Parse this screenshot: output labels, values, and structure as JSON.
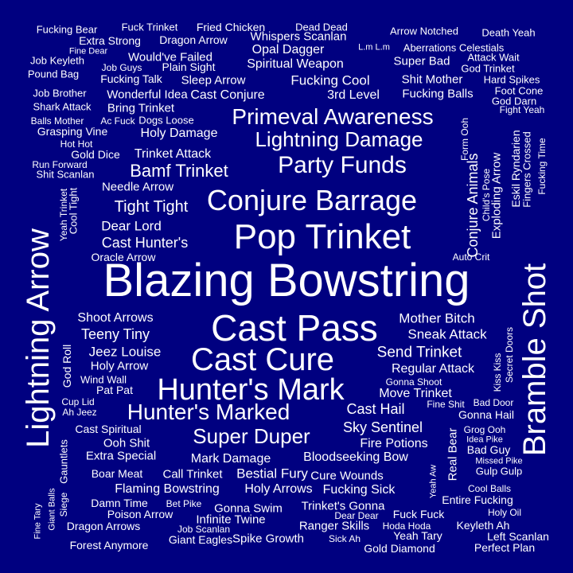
{
  "background": "#000080",
  "text_color": "#ffffff",
  "words": [
    "Blazing Bowstring",
    "Cast Pass",
    "Pop Trinket",
    "Cast Cure",
    "Hunter's Mark",
    "Conjure Barrage",
    "Lightning Arrow",
    "Bramble Shot",
    "Party Funds",
    "Hunter's Marked",
    "Primeval Awareness",
    "Lightning Damage",
    "Super Duper",
    "Bamf Trinket",
    "Tight Tight",
    "Cast Hunter's",
    "Dear Lord",
    "Send Trinket",
    "Sneak Attack",
    "Mother Bitch",
    "Regular Attack",
    "Move Trinket",
    "Sky Sentinel",
    "Teeny Tiny",
    "Jeez Louise",
    "Shoot Arrows",
    "Holy Arrow",
    "Cast Hail",
    "Fire Potions",
    "Bloodseeking Bow",
    "Mark Damage",
    "Extra Special",
    "Cast Spiritual",
    "Ooh Shit",
    "Holy Damage",
    "Trinket Attack",
    "Needle Arrow",
    "Gold Dice",
    "Cast Conjure",
    "3rd Level",
    "Fucking Balls",
    "Fucking Cool",
    "Shit Mother",
    "Spiritual Weapon",
    "Opal Dagger",
    "Super Bad",
    "Would've Failed",
    "Sleep Arrow",
    "Wonderful Idea",
    "Bring Trinket",
    "Fucking Talk",
    "Plain Sight",
    "Whispers Scanlan",
    "Dragon Arrow",
    "Extra Strong",
    "Fucking Bear",
    "Fuck Trinket",
    "Fried Chicken",
    "Dead Dead",
    "Arrow Notched",
    "Death Yeah",
    "Aberrations Celestials",
    "Attack Wait",
    "God Trinket",
    "Hard Spikes",
    "Foot Cone",
    "God Darn",
    "Fight Yeah",
    "Job Keyleth",
    "Pound Bag",
    "Job Guys",
    "Fine Dear",
    "L.m L.m",
    "Job Brother",
    "Shark Attack",
    "Balls Mother",
    "Ac Fuck",
    "Dogs Loose",
    "Grasping Vine",
    "Hot Hot",
    "Run Forward",
    "Shit Scanlan",
    "Oracle Arrow",
    "Auto Crit",
    "Conjure Animals",
    "Exploding Arrow",
    "Child's Pose",
    "Form Ooh",
    "Eskil Ryndarien",
    "Fingers Crossed",
    "Fucking Time",
    "Yeah Trinket",
    "Cool Tight",
    "God Roll",
    "Wind Wall",
    "Pat Pat",
    "Cup Lid",
    "Ah Jeez",
    "Gonna Shoot",
    "Fine Shit",
    "Bad Door",
    "Gonna Hail",
    "Kiss Kiss",
    "Secret Doors",
    "Grog Ooh",
    "Idea Pike",
    "Bad Guy",
    "Missed Pike",
    "Gulp Gulp",
    "Real Bear",
    "Yeah Aw",
    "Cool Balls",
    "Entire Fucking",
    "Holy Oil",
    "Keyleth Ah",
    "Left Scanlan",
    "Perfect Plan",
    "Gold Diamond",
    "Yeah Tary",
    "Fuck Fuck",
    "Hoda Hoda",
    "Dear Dear",
    "Sick Ah",
    "Ranger Skills",
    "Spike Growth",
    "Giant Eagles",
    "Job Scanlan",
    "Infinite Twine",
    "Trinket's Gonna",
    "Fucking Sick",
    "Cure Wounds",
    "Bestial Fury",
    "Holy Arrows",
    "Gonna Swim",
    "Bet Pike",
    "Call Trinket",
    "Flaming Bowstring",
    "Boar Meat",
    "Damn Time",
    "Poison Arrow",
    "Dragon Arrows",
    "Forest Anymore",
    "Gauntlets",
    "Siege",
    "Giant Balls",
    "Fine Tary"
  ]
}
